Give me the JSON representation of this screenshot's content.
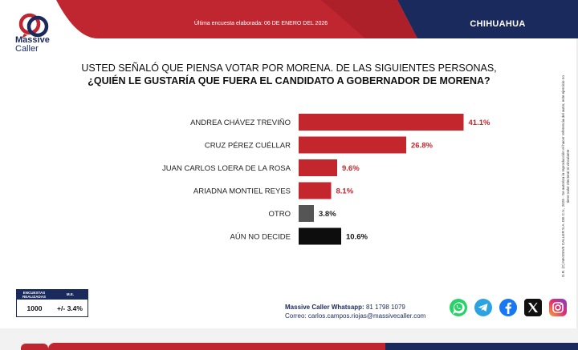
{
  "brand": {
    "name_line1": "Massive",
    "name_line2": "Caller"
  },
  "header": {
    "date_text": "Última encuesta elaborada: 06 DE ENERO DEL 2026",
    "region": "CHIHUAHUA"
  },
  "question": {
    "line1": "USTED SEÑALÓ QUE PIENSA VOTAR POR MORENA. DE LAS SIGUIENTES PERSONAS,",
    "line2": "¿QUIÉN LE GUSTARÍA QUE FUERA EL CANDIDATO A GOBERNADOR DE MORENA?"
  },
  "chart_data": {
    "type": "bar",
    "orientation": "horizontal",
    "title": "¿QUIÉN LE GUSTARÍA QUE FUERA EL CANDIDATO A GOBERNADOR DE MORENA?",
    "xlim": [
      0,
      50
    ],
    "categories": [
      "ANDREA CHÁVEZ TREVIÑO",
      "CRUZ PÉREZ CUÉLLAR",
      "JUAN CARLOS LOERA DE LA ROSA",
      "ARIADNA MONTIEL REYES",
      "OTRO",
      "AÚN NO DECIDE"
    ],
    "values": [
      41.1,
      26.8,
      9.6,
      8.1,
      3.8,
      10.6
    ],
    "value_labels": [
      "41.1%",
      "26.8%",
      "9.6%",
      "8.1%",
      "3.8%",
      "10.6%"
    ],
    "colors": [
      "#c4262e",
      "#c4262e",
      "#c4262e",
      "#c4262e",
      "#555555",
      "#0d0d0d"
    ],
    "label_colors": [
      "#c4262e",
      "#c4262e",
      "#c4262e",
      "#c4262e",
      "#222222",
      "#111111"
    ]
  },
  "stats": {
    "col1_header": "ENCUESTAS REALIZADAS",
    "col2_header": "M.E.",
    "surveys": "1000",
    "margin": "+/- 3.4%"
  },
  "contact": {
    "whatsapp_label": "Massive Caller Whatsapp:",
    "whatsapp": "81 1798 1079",
    "email_label": "Correo:",
    "email": "carlos.campos.riojas@massivecaller.com"
  },
  "rights_text": "D.R. (C) MASSIVE CALLER S.A. DE C.V., 2025 · Se autoriza la reproducción el hacer referencia del autor, este ejercicio no tiene valor electoral ni vinculante",
  "social": [
    "whatsapp-icon",
    "telegram-icon",
    "facebook-icon",
    "x-icon",
    "instagram-icon"
  ]
}
